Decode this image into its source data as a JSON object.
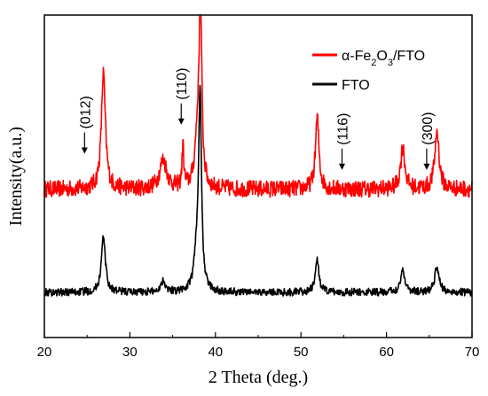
{
  "chart_data": {
    "type": "line",
    "title": "",
    "xlabel": "2 Theta (deg.)",
    "ylabel": "Intensity(a.u.)",
    "xlim": [
      20,
      70
    ],
    "ylim": [
      0,
      100
    ],
    "xticks": [
      "20",
      "30",
      "40",
      "50",
      "60",
      "70"
    ],
    "yticks_shown": false,
    "grid": false,
    "legend_position": "top-right",
    "series": [
      {
        "name": "α-Fe2O3/FTO",
        "color": "#ff0000",
        "baseline": 46,
        "noise": 2.6,
        "peaks": [
          {
            "x": 26.9,
            "height": 36,
            "width": 0.28
          },
          {
            "x": 33.9,
            "height": 9,
            "width": 0.5
          },
          {
            "x": 36.2,
            "height": 13,
            "width": 0.12
          },
          {
            "x": 37.9,
            "height": 15,
            "width": 0.35
          },
          {
            "x": 38.25,
            "height": 56,
            "width": 0.18
          },
          {
            "x": 51.9,
            "height": 22,
            "width": 0.25
          },
          {
            "x": 61.9,
            "height": 13,
            "width": 0.3
          },
          {
            "x": 65.9,
            "height": 18,
            "width": 0.3
          }
        ]
      },
      {
        "name": "FTO",
        "color": "#000000",
        "baseline": 14,
        "noise": 1.2,
        "peaks": [
          {
            "x": 26.9,
            "height": 17,
            "width": 0.28
          },
          {
            "x": 33.9,
            "height": 3.5,
            "width": 0.35
          },
          {
            "x": 37.8,
            "height": 10,
            "width": 0.35
          },
          {
            "x": 38.2,
            "height": 60,
            "width": 0.2
          },
          {
            "x": 51.9,
            "height": 10,
            "width": 0.25
          },
          {
            "x": 61.9,
            "height": 7,
            "width": 0.3
          },
          {
            "x": 65.9,
            "height": 8,
            "width": 0.3
          }
        ]
      }
    ],
    "legend": [
      {
        "label_main": "α-Fe",
        "sub1": "2",
        "mid": "O",
        "sub2": "3",
        "tail": "/FTO",
        "color": "#ff0000"
      },
      {
        "label_main": "FTO",
        "color": "#000000"
      }
    ],
    "annotations": [
      {
        "label": "(012)",
        "x": 24.7,
        "arrow_y": 57
      },
      {
        "label": "(110)",
        "x": 36.0,
        "arrow_y": 66
      },
      {
        "label": "(116)",
        "x": 54.8,
        "arrow_y": 52
      },
      {
        "label": "(300)",
        "x": 64.7,
        "arrow_y": 52
      }
    ]
  }
}
